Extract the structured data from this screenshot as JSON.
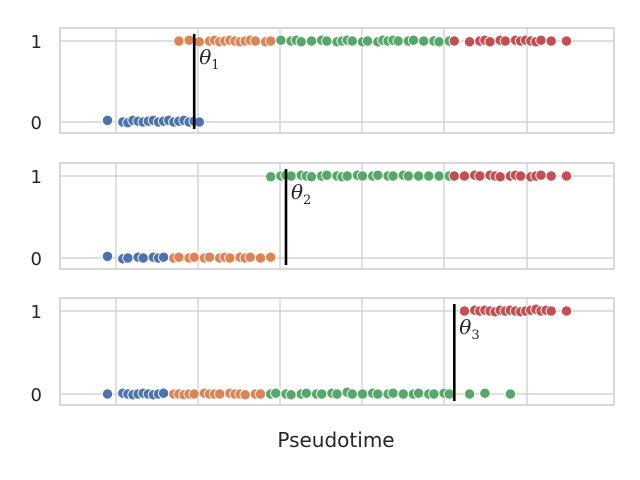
{
  "chart_data": {
    "type": "scatter",
    "xlabel": "Pseudotime",
    "x_range": [
      0,
      1
    ],
    "y_ticks": [
      "0",
      "1"
    ],
    "grid": true,
    "legend": "none",
    "series_colors": {
      "blue": "#4c72b0",
      "orange": "#dd8452",
      "green": "#55a868",
      "red": "#c44e52"
    },
    "panels": [
      {
        "threshold": 0.22,
        "threshold_label": "θ",
        "threshold_subscript": "1",
        "points": [
          {
            "x": 0.05,
            "y": 0.02,
            "c": "blue"
          },
          {
            "x": 0.08,
            "y": 0.0,
            "c": "blue"
          },
          {
            "x": 0.09,
            "y": -0.01,
            "c": "blue"
          },
          {
            "x": 0.1,
            "y": 0.02,
            "c": "blue"
          },
          {
            "x": 0.11,
            "y": 0.01,
            "c": "blue"
          },
          {
            "x": 0.12,
            "y": 0.0,
            "c": "blue"
          },
          {
            "x": 0.13,
            "y": 0.01,
            "c": "blue"
          },
          {
            "x": 0.14,
            "y": 0.02,
            "c": "blue"
          },
          {
            "x": 0.15,
            "y": 0.0,
            "c": "blue"
          },
          {
            "x": 0.16,
            "y": 0.01,
            "c": "blue"
          },
          {
            "x": 0.17,
            "y": 0.02,
            "c": "blue"
          },
          {
            "x": 0.18,
            "y": 0.0,
            "c": "blue"
          },
          {
            "x": 0.19,
            "y": 0.01,
            "c": "blue"
          },
          {
            "x": 0.2,
            "y": 0.02,
            "c": "blue"
          },
          {
            "x": 0.21,
            "y": 0.0,
            "c": "blue"
          },
          {
            "x": 0.22,
            "y": 0.01,
            "c": "blue"
          },
          {
            "x": 0.23,
            "y": 0.0,
            "c": "blue"
          },
          {
            "x": 0.19,
            "y": 1.0,
            "c": "orange"
          },
          {
            "x": 0.21,
            "y": 1.01,
            "c": "orange"
          },
          {
            "x": 0.23,
            "y": 0.99,
            "c": "orange"
          },
          {
            "x": 0.25,
            "y": 1.0,
            "c": "orange"
          },
          {
            "x": 0.26,
            "y": 1.01,
            "c": "orange"
          },
          {
            "x": 0.27,
            "y": 0.99,
            "c": "orange"
          },
          {
            "x": 0.28,
            "y": 1.0,
            "c": "orange"
          },
          {
            "x": 0.29,
            "y": 1.01,
            "c": "orange"
          },
          {
            "x": 0.3,
            "y": 1.0,
            "c": "orange"
          },
          {
            "x": 0.31,
            "y": 0.99,
            "c": "orange"
          },
          {
            "x": 0.32,
            "y": 1.0,
            "c": "orange"
          },
          {
            "x": 0.33,
            "y": 1.01,
            "c": "orange"
          },
          {
            "x": 0.34,
            "y": 1.0,
            "c": "orange"
          },
          {
            "x": 0.36,
            "y": 0.99,
            "c": "orange"
          },
          {
            "x": 0.37,
            "y": 1.0,
            "c": "orange"
          },
          {
            "x": 0.39,
            "y": 1.01,
            "c": "green"
          },
          {
            "x": 0.41,
            "y": 1.0,
            "c": "green"
          },
          {
            "x": 0.42,
            "y": 1.01,
            "c": "green"
          },
          {
            "x": 0.43,
            "y": 0.99,
            "c": "green"
          },
          {
            "x": 0.45,
            "y": 1.0,
            "c": "green"
          },
          {
            "x": 0.47,
            "y": 1.01,
            "c": "green"
          },
          {
            "x": 0.48,
            "y": 1.0,
            "c": "green"
          },
          {
            "x": 0.5,
            "y": 0.99,
            "c": "green"
          },
          {
            "x": 0.51,
            "y": 1.0,
            "c": "green"
          },
          {
            "x": 0.52,
            "y": 1.01,
            "c": "green"
          },
          {
            "x": 0.53,
            "y": 1.0,
            "c": "green"
          },
          {
            "x": 0.55,
            "y": 0.99,
            "c": "green"
          },
          {
            "x": 0.56,
            "y": 1.0,
            "c": "green"
          },
          {
            "x": 0.58,
            "y": 0.99,
            "c": "green"
          },
          {
            "x": 0.59,
            "y": 1.01,
            "c": "green"
          },
          {
            "x": 0.6,
            "y": 1.0,
            "c": "green"
          },
          {
            "x": 0.61,
            "y": 1.01,
            "c": "green"
          },
          {
            "x": 0.62,
            "y": 1.0,
            "c": "green"
          },
          {
            "x": 0.64,
            "y": 1.0,
            "c": "green"
          },
          {
            "x": 0.65,
            "y": 1.01,
            "c": "green"
          },
          {
            "x": 0.67,
            "y": 1.0,
            "c": "green"
          },
          {
            "x": 0.69,
            "y": 1.0,
            "c": "green"
          },
          {
            "x": 0.7,
            "y": 0.99,
            "c": "green"
          },
          {
            "x": 0.72,
            "y": 1.0,
            "c": "green"
          },
          {
            "x": 0.73,
            "y": 1.0,
            "c": "red"
          },
          {
            "x": 0.76,
            "y": 0.99,
            "c": "red"
          },
          {
            "x": 0.78,
            "y": 1.0,
            "c": "red"
          },
          {
            "x": 0.79,
            "y": 1.01,
            "c": "red"
          },
          {
            "x": 0.8,
            "y": 0.99,
            "c": "red"
          },
          {
            "x": 0.82,
            "y": 1.01,
            "c": "red"
          },
          {
            "x": 0.83,
            "y": 1.0,
            "c": "red"
          },
          {
            "x": 0.85,
            "y": 1.01,
            "c": "red"
          },
          {
            "x": 0.86,
            "y": 1.0,
            "c": "red"
          },
          {
            "x": 0.87,
            "y": 1.01,
            "c": "red"
          },
          {
            "x": 0.88,
            "y": 1.0,
            "c": "red"
          },
          {
            "x": 0.89,
            "y": 0.99,
            "c": "red"
          },
          {
            "x": 0.9,
            "y": 1.01,
            "c": "red"
          },
          {
            "x": 0.92,
            "y": 1.0,
            "c": "red"
          },
          {
            "x": 0.95,
            "y": 1.0,
            "c": "red"
          }
        ]
      },
      {
        "threshold": 0.4,
        "threshold_label": "θ",
        "threshold_subscript": "2",
        "points": [
          {
            "x": 0.05,
            "y": 0.02,
            "c": "blue"
          },
          {
            "x": 0.08,
            "y": -0.01,
            "c": "blue"
          },
          {
            "x": 0.09,
            "y": 0.0,
            "c": "blue"
          },
          {
            "x": 0.11,
            "y": 0.01,
            "c": "blue"
          },
          {
            "x": 0.12,
            "y": 0.0,
            "c": "blue"
          },
          {
            "x": 0.14,
            "y": 0.01,
            "c": "blue"
          },
          {
            "x": 0.15,
            "y": 0.0,
            "c": "blue"
          },
          {
            "x": 0.16,
            "y": 0.01,
            "c": "blue"
          },
          {
            "x": 0.18,
            "y": 0.0,
            "c": "orange"
          },
          {
            "x": 0.19,
            "y": 0.01,
            "c": "orange"
          },
          {
            "x": 0.21,
            "y": 0.0,
            "c": "orange"
          },
          {
            "x": 0.22,
            "y": 0.01,
            "c": "orange"
          },
          {
            "x": 0.24,
            "y": 0.0,
            "c": "orange"
          },
          {
            "x": 0.25,
            "y": 0.01,
            "c": "orange"
          },
          {
            "x": 0.27,
            "y": 0.0,
            "c": "orange"
          },
          {
            "x": 0.28,
            "y": 0.01,
            "c": "orange"
          },
          {
            "x": 0.29,
            "y": 0.0,
            "c": "orange"
          },
          {
            "x": 0.31,
            "y": 0.01,
            "c": "orange"
          },
          {
            "x": 0.32,
            "y": 0.0,
            "c": "orange"
          },
          {
            "x": 0.33,
            "y": 0.01,
            "c": "orange"
          },
          {
            "x": 0.35,
            "y": 0.0,
            "c": "orange"
          },
          {
            "x": 0.37,
            "y": 0.01,
            "c": "orange"
          },
          {
            "x": 0.37,
            "y": 0.99,
            "c": "green"
          },
          {
            "x": 0.39,
            "y": 1.0,
            "c": "green"
          },
          {
            "x": 0.4,
            "y": 1.01,
            "c": "green"
          },
          {
            "x": 0.41,
            "y": 1.0,
            "c": "green"
          },
          {
            "x": 0.43,
            "y": 1.01,
            "c": "green"
          },
          {
            "x": 0.44,
            "y": 1.0,
            "c": "green"
          },
          {
            "x": 0.45,
            "y": 0.99,
            "c": "green"
          },
          {
            "x": 0.47,
            "y": 1.0,
            "c": "green"
          },
          {
            "x": 0.48,
            "y": 1.01,
            "c": "green"
          },
          {
            "x": 0.5,
            "y": 1.0,
            "c": "green"
          },
          {
            "x": 0.51,
            "y": 0.99,
            "c": "green"
          },
          {
            "x": 0.52,
            "y": 1.0,
            "c": "green"
          },
          {
            "x": 0.54,
            "y": 1.01,
            "c": "green"
          },
          {
            "x": 0.55,
            "y": 1.0,
            "c": "green"
          },
          {
            "x": 0.57,
            "y": 1.0,
            "c": "green"
          },
          {
            "x": 0.58,
            "y": 1.01,
            "c": "green"
          },
          {
            "x": 0.6,
            "y": 1.0,
            "c": "green"
          },
          {
            "x": 0.61,
            "y": 1.0,
            "c": "green"
          },
          {
            "x": 0.63,
            "y": 1.01,
            "c": "green"
          },
          {
            "x": 0.64,
            "y": 1.0,
            "c": "green"
          },
          {
            "x": 0.66,
            "y": 1.0,
            "c": "green"
          },
          {
            "x": 0.68,
            "y": 1.0,
            "c": "green"
          },
          {
            "x": 0.7,
            "y": 1.0,
            "c": "green"
          },
          {
            "x": 0.72,
            "y": 1.0,
            "c": "green"
          },
          {
            "x": 0.73,
            "y": 1.0,
            "c": "red"
          },
          {
            "x": 0.75,
            "y": 1.0,
            "c": "red"
          },
          {
            "x": 0.77,
            "y": 1.01,
            "c": "red"
          },
          {
            "x": 0.78,
            "y": 1.0,
            "c": "red"
          },
          {
            "x": 0.8,
            "y": 1.01,
            "c": "red"
          },
          {
            "x": 0.81,
            "y": 1.0,
            "c": "red"
          },
          {
            "x": 0.82,
            "y": 0.99,
            "c": "red"
          },
          {
            "x": 0.84,
            "y": 1.0,
            "c": "red"
          },
          {
            "x": 0.85,
            "y": 1.01,
            "c": "red"
          },
          {
            "x": 0.86,
            "y": 1.0,
            "c": "red"
          },
          {
            "x": 0.88,
            "y": 0.99,
            "c": "red"
          },
          {
            "x": 0.89,
            "y": 1.0,
            "c": "red"
          },
          {
            "x": 0.9,
            "y": 1.01,
            "c": "red"
          },
          {
            "x": 0.92,
            "y": 1.0,
            "c": "red"
          },
          {
            "x": 0.95,
            "y": 1.0,
            "c": "red"
          }
        ]
      },
      {
        "threshold": 0.73,
        "threshold_label": "θ",
        "threshold_subscript": "3",
        "points": [
          {
            "x": 0.05,
            "y": 0.0,
            "c": "blue"
          },
          {
            "x": 0.08,
            "y": 0.01,
            "c": "blue"
          },
          {
            "x": 0.09,
            "y": 0.0,
            "c": "blue"
          },
          {
            "x": 0.1,
            "y": -0.01,
            "c": "blue"
          },
          {
            "x": 0.11,
            "y": 0.0,
            "c": "blue"
          },
          {
            "x": 0.12,
            "y": 0.01,
            "c": "blue"
          },
          {
            "x": 0.13,
            "y": 0.0,
            "c": "blue"
          },
          {
            "x": 0.14,
            "y": -0.01,
            "c": "blue"
          },
          {
            "x": 0.15,
            "y": 0.0,
            "c": "blue"
          },
          {
            "x": 0.16,
            "y": 0.01,
            "c": "blue"
          },
          {
            "x": 0.18,
            "y": 0.0,
            "c": "orange"
          },
          {
            "x": 0.19,
            "y": 0.0,
            "c": "orange"
          },
          {
            "x": 0.2,
            "y": -0.01,
            "c": "orange"
          },
          {
            "x": 0.21,
            "y": 0.0,
            "c": "orange"
          },
          {
            "x": 0.22,
            "y": 0.0,
            "c": "orange"
          },
          {
            "x": 0.24,
            "y": 0.01,
            "c": "orange"
          },
          {
            "x": 0.25,
            "y": 0.0,
            "c": "orange"
          },
          {
            "x": 0.26,
            "y": 0.0,
            "c": "orange"
          },
          {
            "x": 0.27,
            "y": 0.0,
            "c": "orange"
          },
          {
            "x": 0.29,
            "y": 0.01,
            "c": "orange"
          },
          {
            "x": 0.3,
            "y": 0.0,
            "c": "orange"
          },
          {
            "x": 0.31,
            "y": 0.0,
            "c": "orange"
          },
          {
            "x": 0.32,
            "y": -0.01,
            "c": "orange"
          },
          {
            "x": 0.34,
            "y": 0.0,
            "c": "orange"
          },
          {
            "x": 0.35,
            "y": 0.0,
            "c": "orange"
          },
          {
            "x": 0.37,
            "y": 0.0,
            "c": "green"
          },
          {
            "x": 0.38,
            "y": 0.01,
            "c": "green"
          },
          {
            "x": 0.4,
            "y": 0.0,
            "c": "green"
          },
          {
            "x": 0.41,
            "y": -0.01,
            "c": "green"
          },
          {
            "x": 0.43,
            "y": 0.0,
            "c": "green"
          },
          {
            "x": 0.44,
            "y": 0.01,
            "c": "green"
          },
          {
            "x": 0.46,
            "y": 0.0,
            "c": "green"
          },
          {
            "x": 0.47,
            "y": 0.0,
            "c": "green"
          },
          {
            "x": 0.49,
            "y": 0.01,
            "c": "green"
          },
          {
            "x": 0.5,
            "y": 0.0,
            "c": "green"
          },
          {
            "x": 0.52,
            "y": 0.02,
            "c": "green"
          },
          {
            "x": 0.53,
            "y": 0.0,
            "c": "green"
          },
          {
            "x": 0.55,
            "y": 0.0,
            "c": "green"
          },
          {
            "x": 0.57,
            "y": 0.01,
            "c": "green"
          },
          {
            "x": 0.58,
            "y": 0.0,
            "c": "green"
          },
          {
            "x": 0.6,
            "y": 0.0,
            "c": "green"
          },
          {
            "x": 0.61,
            "y": 0.01,
            "c": "green"
          },
          {
            "x": 0.63,
            "y": 0.0,
            "c": "green"
          },
          {
            "x": 0.65,
            "y": 0.0,
            "c": "green"
          },
          {
            "x": 0.66,
            "y": 0.01,
            "c": "green"
          },
          {
            "x": 0.68,
            "y": 0.0,
            "c": "green"
          },
          {
            "x": 0.69,
            "y": 0.0,
            "c": "green"
          },
          {
            "x": 0.71,
            "y": 0.01,
            "c": "green"
          },
          {
            "x": 0.72,
            "y": 0.0,
            "c": "green"
          },
          {
            "x": 0.76,
            "y": 0.0,
            "c": "green"
          },
          {
            "x": 0.79,
            "y": 0.01,
            "c": "green"
          },
          {
            "x": 0.84,
            "y": 0.0,
            "c": "green"
          },
          {
            "x": 0.75,
            "y": 1.0,
            "c": "red"
          },
          {
            "x": 0.77,
            "y": 1.01,
            "c": "red"
          },
          {
            "x": 0.78,
            "y": 1.0,
            "c": "red"
          },
          {
            "x": 0.79,
            "y": 1.01,
            "c": "red"
          },
          {
            "x": 0.8,
            "y": 1.0,
            "c": "red"
          },
          {
            "x": 0.81,
            "y": 0.99,
            "c": "red"
          },
          {
            "x": 0.82,
            "y": 1.01,
            "c": "red"
          },
          {
            "x": 0.83,
            "y": 1.0,
            "c": "red"
          },
          {
            "x": 0.84,
            "y": 1.01,
            "c": "red"
          },
          {
            "x": 0.85,
            "y": 1.0,
            "c": "red"
          },
          {
            "x": 0.86,
            "y": 0.99,
            "c": "red"
          },
          {
            "x": 0.87,
            "y": 1.0,
            "c": "red"
          },
          {
            "x": 0.88,
            "y": 1.01,
            "c": "red"
          },
          {
            "x": 0.89,
            "y": 1.02,
            "c": "red"
          },
          {
            "x": 0.9,
            "y": 1.0,
            "c": "red"
          },
          {
            "x": 0.91,
            "y": 1.01,
            "c": "red"
          },
          {
            "x": 0.92,
            "y": 1.0,
            "c": "red"
          },
          {
            "x": 0.95,
            "y": 1.0,
            "c": "red"
          }
        ]
      }
    ]
  }
}
